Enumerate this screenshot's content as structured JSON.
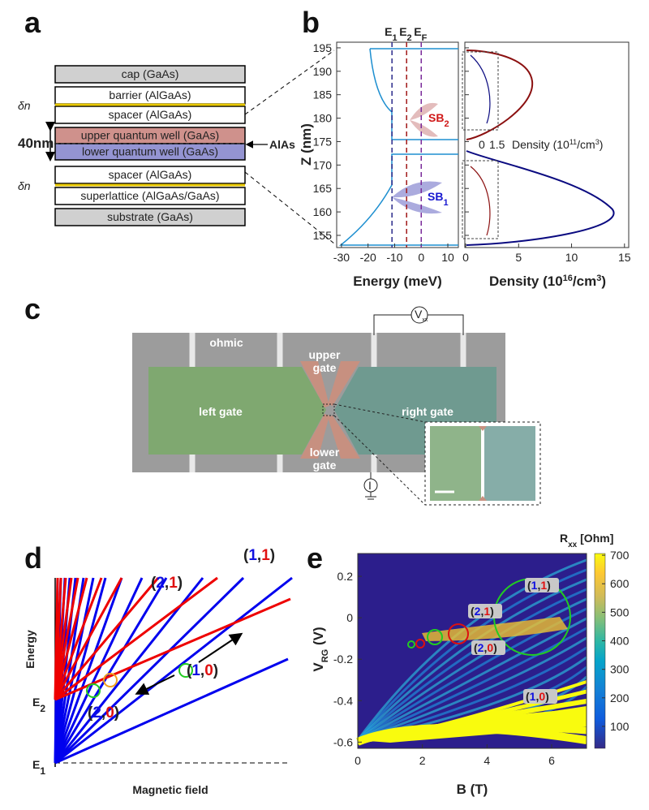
{
  "panel_labels": {
    "a": "a",
    "b": "b",
    "c": "c",
    "d": "d",
    "e": "e"
  },
  "a": {
    "layers": [
      "cap (GaAs)",
      "barrier (AlGaAs)",
      "spacer (AlGaAs)",
      "upper quantum well (GaAs)",
      "lower quantum well (GaAs)",
      "spacer (AlGaAs)",
      "superlattice (AlGaAs/GaAs)",
      "substrate (GaAs)"
    ],
    "delta_n": "δn",
    "thickness": "40nm",
    "alas": "AlAs"
  },
  "b": {
    "band": {
      "xlabel": "Energy (meV)",
      "ylabel": "Z (nm)",
      "xlim": [
        -31.8,
        13.96
      ],
      "xticks": [
        -30,
        -20,
        -10,
        0,
        10
      ],
      "ylim": [
        152.4,
        196.2
      ],
      "yticks": [
        155,
        160,
        165,
        170,
        175,
        180,
        185,
        190,
        195
      ],
      "levels": [
        {
          "symbol": "E",
          "sub": "1",
          "value": -11,
          "color": "#2a2a8a"
        },
        {
          "symbol": "E",
          "sub": "2",
          "value": -5.5,
          "color": "#a01818"
        },
        {
          "symbol": "E",
          "sub": "F",
          "value": 0,
          "color": "#7a2a9a"
        }
      ],
      "subbands": [
        {
          "symbol": "SB",
          "sub": "2"
        },
        {
          "symbol": "SB",
          "sub": "1"
        }
      ]
    },
    "density": {
      "xlabel": [
        "Density (10",
        "16",
        "/cm",
        "3",
        ")"
      ],
      "xlim": [
        -0.08,
        15.4
      ],
      "xticks": [
        0,
        5,
        10,
        15
      ],
      "inset_ticks": [
        0,
        1.5
      ],
      "inset_label": [
        "Density (10",
        "11",
        "/cm",
        "3",
        ")"
      ]
    }
  },
  "c": {
    "ohmic": "ohmic",
    "upper_gate": [
      "upper",
      "gate"
    ],
    "left_gate": "left gate",
    "right_gate": "right gate",
    "lower_gate": [
      "lower",
      "gate"
    ],
    "voltmeter": {
      "symbol": "V",
      "sub": "xx"
    },
    "current": "I"
  },
  "d": {
    "ylabel": "Energy",
    "xlabel": "Magnetic field",
    "levels": [
      {
        "symbol": "E",
        "sub": "2"
      },
      {
        "symbol": "E",
        "sub": "1"
      }
    ],
    "states": [
      [
        "(",
        "1",
        ",",
        "1",
        ")"
      ],
      [
        "(",
        "2",
        ",",
        "1",
        ")"
      ],
      [
        "(",
        "1",
        ",",
        "0",
        ")"
      ],
      [
        "(",
        "2",
        ",",
        "0",
        ")"
      ]
    ]
  },
  "e": {
    "xlabel": "B (T)",
    "ylabel": {
      "symbol": "V",
      "sub": "RG",
      "after": " (V)"
    },
    "xlim": [
      0,
      7.08
    ],
    "xticks": [
      0,
      2,
      4,
      6
    ],
    "ylim": [
      -0.63,
      0.31
    ],
    "yticks": [
      0.2,
      0,
      -0.2,
      -0.4,
      -0.6
    ],
    "colorbar": {
      "title": {
        "symbol": "R",
        "sub": "xx",
        "after": " [Ohm]"
      },
      "lim": [
        23,
        706
      ],
      "ticks": [
        100,
        200,
        300,
        400,
        500,
        600,
        700
      ]
    },
    "states": [
      [
        "(",
        "1",
        ",",
        "1",
        ")"
      ],
      [
        "(",
        "2",
        ",",
        "1",
        ")"
      ],
      [
        "(",
        "2",
        ",",
        "0",
        ")"
      ],
      [
        "(",
        "1",
        ",",
        "0",
        ")"
      ]
    ]
  }
}
